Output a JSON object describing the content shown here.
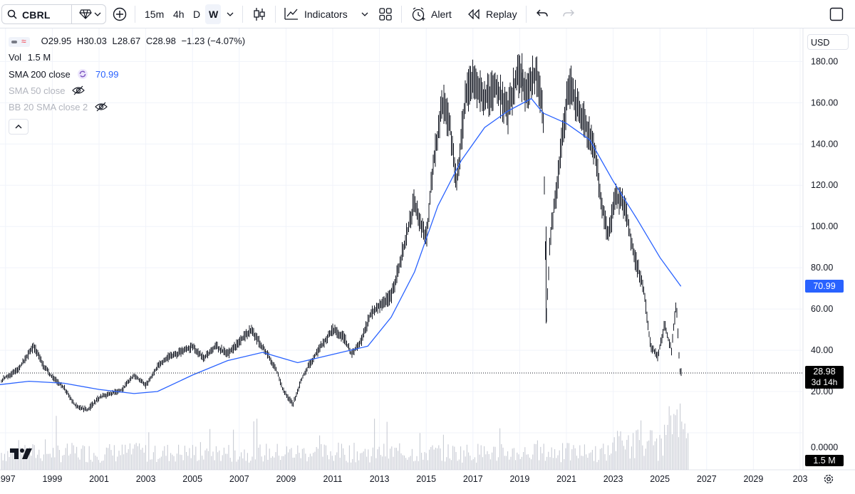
{
  "toolbar": {
    "symbol": "CBRL",
    "timeframes": [
      "15m",
      "4h",
      "D",
      "W"
    ],
    "active_timeframe": "W",
    "indicators_label": "Indicators",
    "alert_label": "Alert",
    "replay_label": "Replay",
    "icons": [
      "search-icon",
      "diamond-icon",
      "add-compare-icon",
      "candles-icon",
      "indicators-icon",
      "layout-grid-icon",
      "alert-clock-icon",
      "replay-icon",
      "undo-icon",
      "redo-icon",
      "fullscreen-icon"
    ]
  },
  "legend": {
    "ohlc": {
      "o_label": "O",
      "o": "29.95",
      "h_label": "H",
      "h": "30.03",
      "l_label": "L",
      "l": "28.67",
      "c_label": "C",
      "c": "28.98",
      "change": "−1.23 (−4.07%)"
    },
    "vol_label": "Vol",
    "vol_value": "1.5 M",
    "sma200_label": "SMA 200 close",
    "sma200_value": "70.99",
    "sma50_label": "SMA 50 close",
    "bb_label": "BB 20 SMA close 2"
  },
  "price_axis": {
    "currency": "USD",
    "ticks": [
      "180.00",
      "160.00",
      "140.00",
      "120.00",
      "100.00",
      "80.00",
      "60.00",
      "40.00",
      "20.00",
      "0.0000"
    ],
    "last_price": "28.98",
    "countdown": "3d 14h",
    "sma_tag": "70.99",
    "volume_tag": "1.5 M"
  },
  "time_axis": {
    "ticks": [
      "1997",
      "1999",
      "2001",
      "2003",
      "2005",
      "2007",
      "2009",
      "2011",
      "2013",
      "2015",
      "2017",
      "2019",
      "2021",
      "2023",
      "2025",
      "2027",
      "2029",
      "203"
    ]
  },
  "colors": {
    "candle": "#131722",
    "sma200": "#2962ff",
    "volume": "#c8cbd4",
    "grid": "#f0f3fa",
    "price_tag": "#000000"
  },
  "chart_data": {
    "type": "line",
    "xlabel": "",
    "ylabel": "",
    "ylim": [
      0,
      185
    ],
    "series": [
      {
        "x": [
          1996.5,
          1997.0,
          1997.5,
          1997.8,
          1998.2,
          1998.6,
          1999.0,
          1999.5,
          2000.0,
          2000.5,
          2001.0,
          2001.5,
          2002.0,
          2002.5,
          2003.0,
          2003.5,
          2004.0,
          2004.5,
          2005.0,
          2005.5,
          2006.0,
          2006.5,
          2007.0,
          2007.5,
          2007.8,
          2008.2,
          2008.6,
          2008.9,
          2009.3,
          2009.7,
          2010.0,
          2010.5,
          2011.0,
          2011.5,
          2011.8,
          2012.2,
          2012.6,
          2013.0,
          2013.5,
          2014.0,
          2014.5,
          2015.0,
          2015.3,
          2015.7,
          2016.0,
          2016.3,
          2016.7,
          2017.0,
          2017.5,
          2018.0,
          2018.5,
          2018.9,
          2019.3,
          2019.7,
          2020.0,
          2020.15,
          2020.3,
          2020.6,
          2020.9,
          2021.1,
          2021.4,
          2021.8,
          2022.2,
          2022.5,
          2022.8,
          2023.1,
          2023.5,
          2023.9,
          2024.3,
          2024.6,
          2024.9,
          2025.2,
          2025.5,
          2025.7,
          2025.85,
          2025.95
        ],
        "values": [
          22,
          27,
          30,
          35,
          42,
          33,
          27,
          22,
          13,
          11,
          17,
          19,
          21,
          28,
          23,
          32,
          37,
          39,
          42,
          36,
          42,
          38,
          44,
          50,
          45,
          38,
          30,
          20,
          14,
          27,
          33,
          42,
          50,
          46,
          38,
          44,
          57,
          62,
          66,
          88,
          112,
          93,
          130,
          160,
          150,
          120,
          165,
          170,
          162,
          168,
          155,
          175,
          165,
          175,
          158,
          55,
          95,
          120,
          150,
          170,
          160,
          150,
          138,
          112,
          95,
          115,
          110,
          86,
          70,
          42,
          37,
          52,
          40,
          64,
          30,
          29
        ]
      },
      {
        "name": "SMA 200 close",
        "x": [
          1996.5,
          1998.0,
          1999.5,
          2001.0,
          2002.5,
          2003.5,
          2005.0,
          2006.5,
          2008.0,
          2009.5,
          2011.0,
          2012.5,
          2013.5,
          2014.5,
          2015.5,
          2016.5,
          2017.5,
          2018.5,
          2019.5,
          2020.0,
          2021.0,
          2022.0,
          2023.0,
          2024.0,
          2025.0,
          2025.9
        ],
        "values": [
          23,
          25,
          24,
          21,
          19,
          20,
          28,
          35,
          39,
          34,
          38,
          42,
          56,
          78,
          110,
          132,
          148,
          156,
          162,
          155,
          150,
          142,
          122,
          104,
          85,
          70.99
        ]
      }
    ]
  }
}
